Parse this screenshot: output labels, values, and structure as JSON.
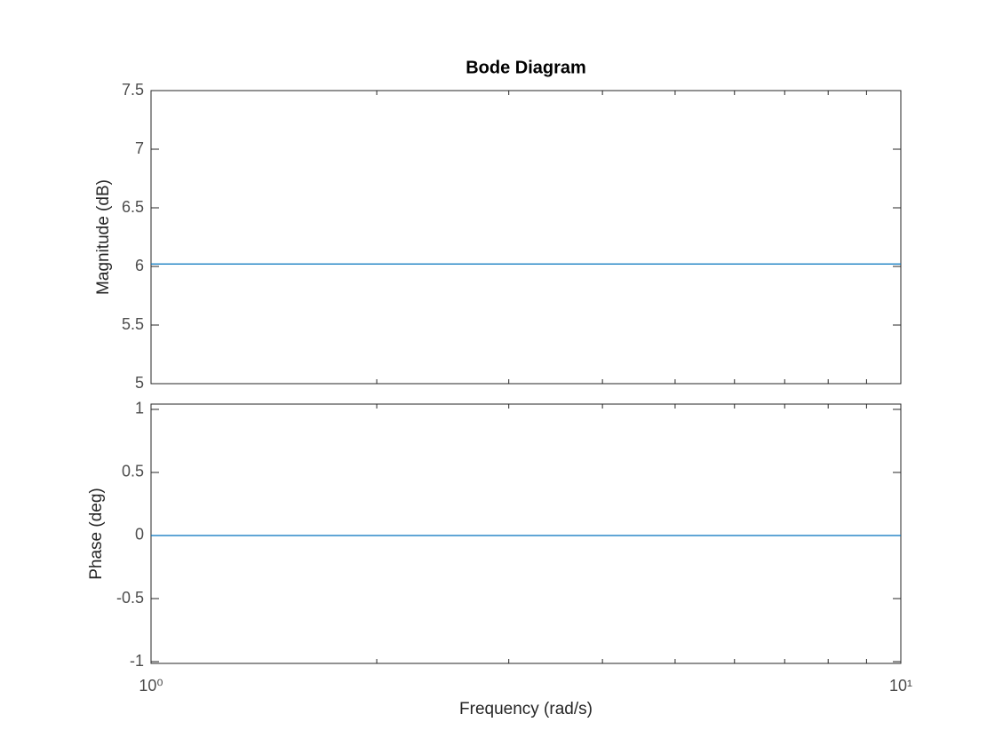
{
  "chart_data": [
    {
      "type": "line",
      "title": "Bode Diagram",
      "ylabel": "Magnitude (dB)",
      "x": [
        1,
        10
      ],
      "values": [
        6.0206,
        6.0206
      ],
      "color": "#0072BD",
      "xscale": "log",
      "xlim": [
        1,
        10
      ],
      "xticks": [
        {
          "value": 1,
          "label": "10⁰"
        },
        {
          "value": 10,
          "label": "10¹"
        }
      ],
      "xminor_ticks": [
        2,
        3,
        4,
        5,
        6,
        7,
        8,
        9
      ],
      "ylim": [
        5,
        7.5
      ],
      "yticks": [
        5,
        5.5,
        6,
        6.5,
        7,
        7.5
      ],
      "grid": false,
      "show_xtick_labels": false
    },
    {
      "type": "line",
      "ylabel": "Phase (deg)",
      "xlabel": "Frequency  (rad/s)",
      "x": [
        1,
        10
      ],
      "values": [
        0,
        0
      ],
      "color": "#0072BD",
      "xscale": "log",
      "xlim": [
        1,
        10
      ],
      "xticks": [
        {
          "value": 1,
          "label": "10⁰"
        },
        {
          "value": 10,
          "label": "10¹"
        }
      ],
      "xminor_ticks": [
        2,
        3,
        4,
        5,
        6,
        7,
        8,
        9
      ],
      "ylim": [
        -1.014,
        1.042
      ],
      "yticks": [
        -1,
        -0.5,
        0,
        0.5,
        1
      ],
      "grid": false,
      "show_xtick_labels": true
    }
  ]
}
